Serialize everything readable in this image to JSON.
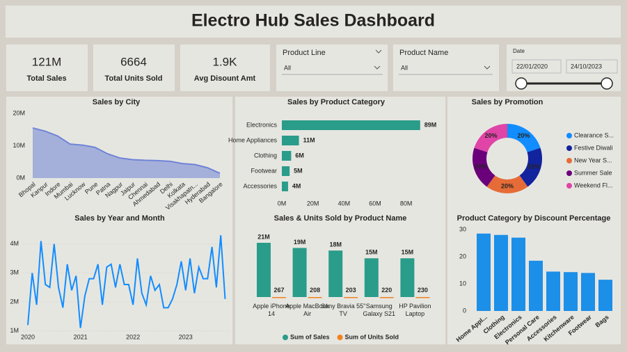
{
  "title": "Electro Hub Sales Dashboard",
  "kpis": [
    {
      "value": "121M",
      "label": "Total Sales"
    },
    {
      "value": "6664",
      "label": "Total Units Sold"
    },
    {
      "value": "1.9K",
      "label": "Avg Disount Amt"
    }
  ],
  "slicers": [
    {
      "title": "Product Line",
      "selection": "All"
    },
    {
      "title": "Product Name",
      "selection": "All"
    },
    {
      "title": "Date",
      "start": "22/01/2020",
      "end": "24/10/2023"
    }
  ],
  "chart_data": [
    {
      "type": "area",
      "title": "Sales by City",
      "categories": [
        "Bhopal",
        "Kanpur",
        "Indore",
        "Mumbai",
        "Lucknow",
        "Pune",
        "Patna",
        "Nagpur",
        "Jaipur",
        "Chennai",
        "Ahmedabad",
        "Delhi",
        "Kolkata",
        "Visakhapatn...",
        "Hyderabad",
        "Bangalore"
      ],
      "values": [
        15.5,
        14.5,
        13,
        10.5,
        10.2,
        9.5,
        7.5,
        6.2,
        5.7,
        5.5,
        5.4,
        5.2,
        4.5,
        4.2,
        3.2,
        1.5
      ],
      "color": "#6f84d6",
      "ylim": [
        0,
        20
      ],
      "yticks": [
        {
          "value": 0,
          "label": "0M"
        },
        {
          "value": 10,
          "label": "10M"
        },
        {
          "value": 20,
          "label": "20M"
        }
      ],
      "grid": false
    },
    {
      "type": "bar",
      "orientation": "horizontal",
      "title": "Sales by Product Category",
      "categories": [
        "Electronics",
        "Home Appliances",
        "Clothing",
        "Footwear",
        "Accessories"
      ],
      "values": [
        89,
        11,
        6,
        5,
        4
      ],
      "value_labels": [
        "89M",
        "11M",
        "6M",
        "5M",
        "4M"
      ],
      "color": "#2a9c8a",
      "xlim": [
        0,
        90
      ],
      "xticks": [
        {
          "value": 0,
          "label": "0M"
        },
        {
          "value": 20,
          "label": "20M"
        },
        {
          "value": 40,
          "label": "40M"
        },
        {
          "value": 60,
          "label": "60M"
        },
        {
          "value": 80,
          "label": "80M"
        }
      ]
    },
    {
      "type": "donut",
      "title": "Sales by Promotion",
      "categories": [
        "Clearance S...",
        "Festive Diwali",
        "New Year S...",
        "Summer Sale",
        "Weekend Fl..."
      ],
      "values": [
        20,
        20,
        20,
        20,
        20
      ],
      "value_labels": [
        "20%",
        "20%",
        "20%",
        "20%",
        "20%"
      ],
      "colors": [
        "#118dff",
        "#12239e",
        "#e66c37",
        "#6b007b",
        "#e044a7"
      ]
    },
    {
      "type": "line",
      "title": "Sales by Year and Month",
      "categories": [
        "2020",
        null,
        null,
        null,
        null,
        null,
        null,
        null,
        null,
        null,
        null,
        null,
        "2021",
        null,
        null,
        null,
        null,
        null,
        null,
        null,
        null,
        null,
        null,
        null,
        "2022",
        null,
        null,
        null,
        null,
        null,
        null,
        null,
        null,
        null,
        null,
        null,
        "2023",
        null,
        null,
        null,
        null,
        null,
        null,
        null,
        null,
        null
      ],
      "values": [
        1.2,
        3.0,
        1.9,
        4.1,
        2.6,
        2.5,
        4.0,
        2.5,
        1.8,
        3.3,
        2.4,
        2.9,
        1.1,
        2.2,
        2.8,
        2.8,
        3.3,
        1.9,
        3.2,
        3.3,
        2.5,
        3.3,
        2.6,
        2.6,
        1.9,
        3.5,
        2.3,
        1.9,
        2.9,
        2.4,
        2.6,
        1.8,
        1.8,
        2.1,
        2.6,
        3.4,
        2.4,
        3.5,
        2.3,
        3.2,
        2.8,
        2.8,
        3.9,
        2.5,
        4.3,
        2.1
      ],
      "color": "#118dff",
      "ylim": [
        0.8,
        4.4
      ],
      "yticks": [
        {
          "value": 1,
          "label": "1M"
        },
        {
          "value": 2,
          "label": "2M"
        },
        {
          "value": 3,
          "label": "3M"
        },
        {
          "value": 4,
          "label": "4M"
        }
      ],
      "grid": true
    },
    {
      "type": "bar",
      "title": "Sales & Units Sold by Product Name",
      "categories": [
        "Apple iPhone 14",
        "Apple MacBook Air",
        "Sony Bravia 55\" TV",
        "Samsung Galaxy S21",
        "HP Pavilion Laptop"
      ],
      "series": [
        {
          "name": "Sum of Sales",
          "color": "#2a9c8a",
          "values": [
            21000000,
            19000000,
            18000000,
            15000000,
            15000000
          ],
          "value_labels": [
            "21M",
            "19M",
            "18M",
            "15M",
            "15M"
          ]
        },
        {
          "name": "Sum of Units Sold",
          "color": "#f0831e",
          "values": [
            267,
            208,
            203,
            220,
            230
          ]
        }
      ],
      "legend": "bottom"
    },
    {
      "type": "bar",
      "title": "Product Category by Discount Percentage",
      "categories": [
        "Home Appl...",
        "Clothing",
        "Electronics",
        "Personal Care",
        "Accessories",
        "Kitchenware",
        "Footwear",
        "Bags"
      ],
      "values": [
        28.5,
        28,
        27,
        18.5,
        14.5,
        14.3,
        14,
        11.5
      ],
      "color": "#1c8fe8",
      "ylim": [
        0,
        31
      ],
      "yticks": [
        0,
        10,
        20,
        30
      ]
    }
  ]
}
